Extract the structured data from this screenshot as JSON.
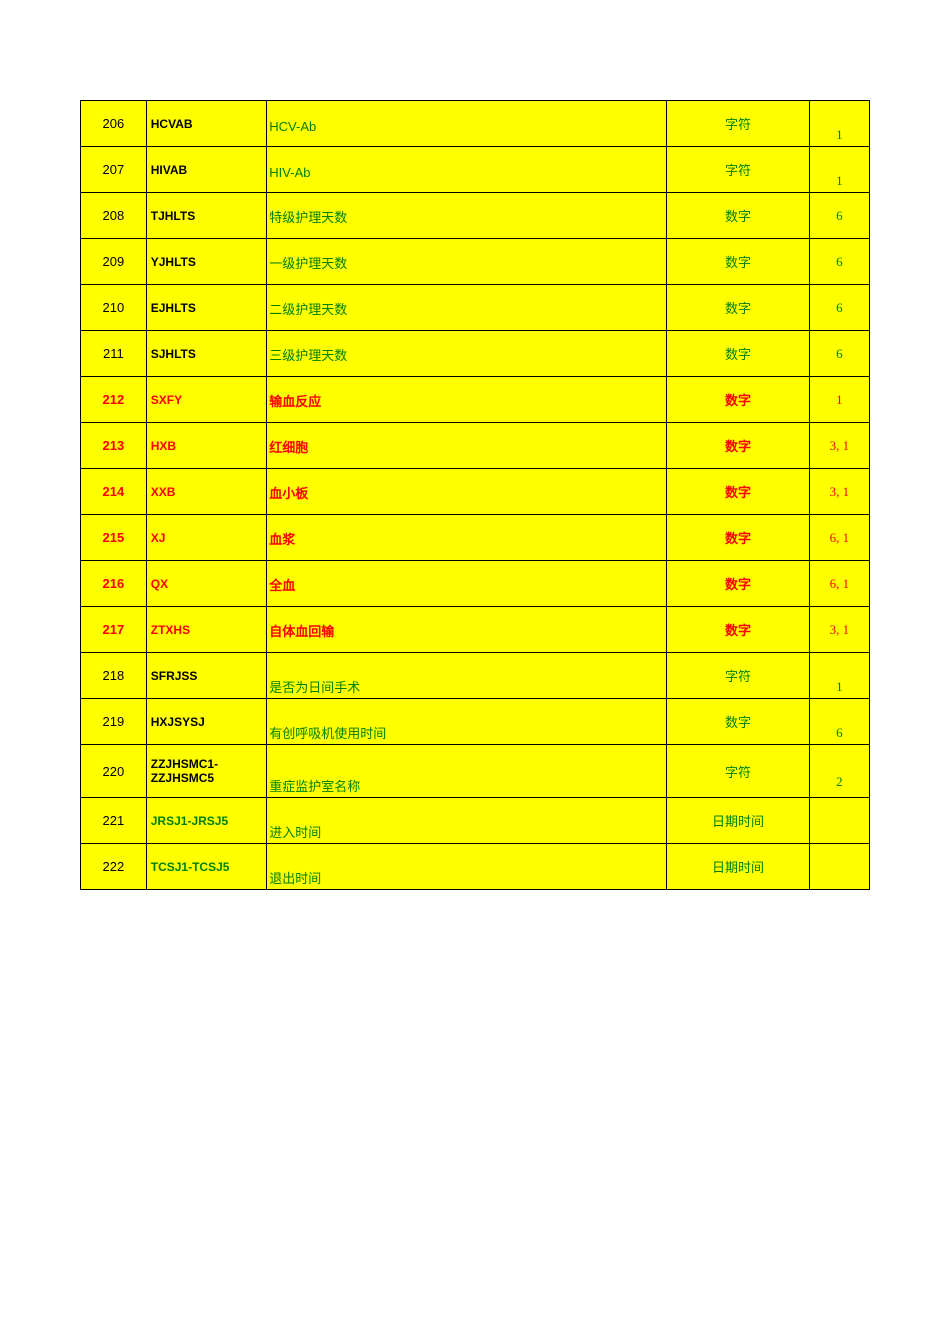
{
  "rows": [
    {
      "num": "206",
      "code": "HCVAB",
      "desc": "HCV-Ab",
      "type": "字符",
      "val": "1",
      "numBold": false,
      "numColor": "black-text",
      "codeColor": "black-text",
      "descColor": "green-text",
      "descBold": false,
      "typeColor": "green-text",
      "typeBold": false,
      "valColor": "green-text",
      "descAlign": "valign-mid",
      "valAlign": "valign-bot"
    },
    {
      "num": "207",
      "code": "HIVAB",
      "desc": "HIV-Ab",
      "type": "字符",
      "val": "1",
      "numBold": false,
      "numColor": "black-text",
      "codeColor": "black-text",
      "descColor": "green-text",
      "descBold": false,
      "typeColor": "green-text",
      "typeBold": false,
      "valColor": "green-text",
      "descAlign": "valign-mid",
      "valAlign": "valign-bot"
    },
    {
      "num": "208",
      "code": "TJHLTS",
      "desc": "特级护理天数",
      "type": "数字",
      "val": "6",
      "numBold": false,
      "numColor": "black-text",
      "codeColor": "black-text",
      "descColor": "green-text",
      "descBold": false,
      "typeColor": "green-text",
      "typeBold": false,
      "valColor": "green-text",
      "descAlign": "valign-mid",
      "valAlign": "valign-mid"
    },
    {
      "num": "209",
      "code": "YJHLTS",
      "desc": "一级护理天数",
      "type": "数字",
      "val": "6",
      "numBold": false,
      "numColor": "black-text",
      "codeColor": "black-text",
      "descColor": "green-text",
      "descBold": false,
      "typeColor": "green-text",
      "typeBold": false,
      "valColor": "green-text",
      "descAlign": "valign-mid",
      "valAlign": "valign-mid"
    },
    {
      "num": "210",
      "code": "EJHLTS",
      "desc": "二级护理天数",
      "type": "数字",
      "val": "6",
      "numBold": false,
      "numColor": "black-text",
      "codeColor": "black-text",
      "descColor": "green-text",
      "descBold": false,
      "typeColor": "green-text",
      "typeBold": false,
      "valColor": "green-text",
      "descAlign": "valign-mid",
      "valAlign": "valign-mid"
    },
    {
      "num": "211",
      "code": "SJHLTS",
      "desc": "三级护理天数",
      "type": "数字",
      "val": "6",
      "numBold": false,
      "numColor": "black-text",
      "codeColor": "black-text",
      "descColor": "green-text",
      "descBold": false,
      "typeColor": "green-text",
      "typeBold": false,
      "valColor": "green-text",
      "descAlign": "valign-mid",
      "valAlign": "valign-mid"
    },
    {
      "num": "212",
      "code": "SXFY",
      "desc": "输血反应",
      "type": "数字",
      "val": "1",
      "numBold": true,
      "numColor": "red-text",
      "codeColor": "red-text",
      "descColor": "red-text",
      "descBold": true,
      "typeColor": "red-text",
      "typeBold": true,
      "valColor": "red-text",
      "descAlign": "valign-mid",
      "valAlign": "valign-mid"
    },
    {
      "num": "213",
      "code": "HXB",
      "desc": "红细胞",
      "type": "数字",
      "val": "3, 1",
      "numBold": true,
      "numColor": "red-text",
      "codeColor": "red-text",
      "descColor": "red-text",
      "descBold": true,
      "typeColor": "red-text",
      "typeBold": true,
      "valColor": "red-text",
      "descAlign": "valign-mid",
      "valAlign": "valign-mid"
    },
    {
      "num": "214",
      "code": "XXB",
      "desc": "血小板",
      "type": "数字",
      "val": "3, 1",
      "numBold": true,
      "numColor": "red-text",
      "codeColor": "red-text",
      "descColor": "red-text",
      "descBold": true,
      "typeColor": "red-text",
      "typeBold": true,
      "valColor": "red-text",
      "descAlign": "valign-mid",
      "valAlign": "valign-mid"
    },
    {
      "num": "215",
      "code": "XJ",
      "desc": "血浆",
      "type": "数字",
      "val": "6, 1",
      "numBold": true,
      "numColor": "red-text",
      "codeColor": "red-text",
      "descColor": "red-text",
      "descBold": true,
      "typeColor": "red-text",
      "typeBold": true,
      "valColor": "red-text",
      "descAlign": "valign-mid",
      "valAlign": "valign-mid"
    },
    {
      "num": "216",
      "code": "QX",
      "desc": "全血",
      "type": "数字",
      "val": "6, 1",
      "numBold": true,
      "numColor": "red-text",
      "codeColor": "red-text",
      "descColor": "red-text",
      "descBold": true,
      "typeColor": "red-text",
      "typeBold": true,
      "valColor": "red-text",
      "descAlign": "valign-mid",
      "valAlign": "valign-mid"
    },
    {
      "num": "217",
      "code": "ZTXHS",
      "desc": "自体血回输",
      "type": "数字",
      "val": "3, 1",
      "numBold": true,
      "numColor": "red-text",
      "codeColor": "red-text",
      "descColor": "red-text",
      "descBold": true,
      "typeColor": "red-text",
      "typeBold": true,
      "valColor": "red-text",
      "descAlign": "valign-mid",
      "valAlign": "valign-mid"
    },
    {
      "num": "218",
      "code": "SFRJSS",
      "desc": "是否为日间手术",
      "type": "字符",
      "val": "1",
      "numBold": false,
      "numColor": "black-text",
      "codeColor": "black-text",
      "descColor": "green-text",
      "descBold": false,
      "typeColor": "green-text",
      "typeBold": false,
      "valColor": "green-text",
      "descAlign": "valign-bot",
      "valAlign": "valign-bot"
    },
    {
      "num": "219",
      "code": "HXJSYSJ",
      "desc": "有创呼吸机使用时间",
      "type": "数字",
      "val": "6",
      "numBold": false,
      "numColor": "black-text",
      "codeColor": "black-text",
      "descColor": "green-text",
      "descBold": false,
      "typeColor": "green-text",
      "typeBold": false,
      "valColor": "green-text",
      "descAlign": "valign-bot",
      "valAlign": "valign-bot"
    },
    {
      "num": "220",
      "code": "ZZJHSMC1-ZZJHSMC5",
      "desc": "重症监护室名称",
      "type": "字符",
      "val": "2",
      "numBold": false,
      "numColor": "black-text",
      "codeColor": "black-text",
      "descColor": "green-text",
      "descBold": false,
      "typeColor": "green-text",
      "typeBold": false,
      "valColor": "green-text",
      "descAlign": "valign-bot",
      "valAlign": "valign-bot"
    },
    {
      "num": "221",
      "code": "JRSJ1-JRSJ5",
      "desc": "进入时间",
      "type": "日期时间",
      "val": "",
      "numBold": false,
      "numColor": "black-text",
      "codeColor": "green-text",
      "descColor": "green-text",
      "descBold": false,
      "typeColor": "green-text",
      "typeBold": false,
      "valColor": "green-text",
      "descAlign": "valign-bot",
      "valAlign": "valign-bot"
    },
    {
      "num": "222",
      "code": "TCSJ1-TCSJ5",
      "desc": "退出时间",
      "type": "日期时间",
      "val": "",
      "numBold": false,
      "numColor": "black-text",
      "codeColor": "green-text",
      "descColor": "green-text",
      "descBold": false,
      "typeColor": "green-text",
      "typeBold": false,
      "valColor": "green-text",
      "descAlign": "valign-bot",
      "valAlign": "valign-bot"
    }
  ]
}
